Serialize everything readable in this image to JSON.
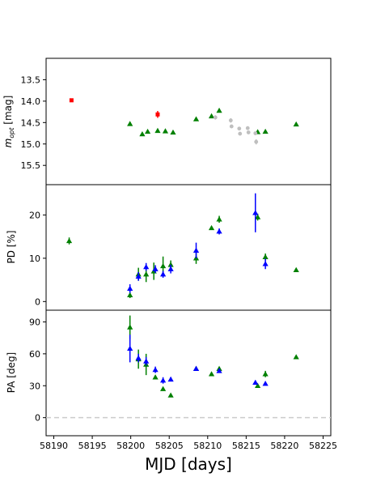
{
  "chart_data": {
    "type": "scatter",
    "xlabel": "MJD [days]",
    "xlim": [
      58189,
      58226
    ],
    "xticks": [
      "58190",
      "58195",
      "58200",
      "58205",
      "58210",
      "58215",
      "58220",
      "58225"
    ],
    "colors": {
      "red": "#ff0000",
      "green": "#008000",
      "blue": "#0000ff",
      "grey": "#bfbfbf"
    },
    "panels": [
      {
        "id": "mag",
        "ylabel_main": "m",
        "ylabel_sub": "opt",
        "ylabel_unit": " [mag]",
        "ylim": [
          15.95,
          13.0
        ],
        "inverted": true,
        "yticks": [
          "13.5",
          "14.0",
          "14.5",
          "15.0",
          "15.5"
        ],
        "series": [
          {
            "color": "red",
            "marker": "square",
            "points": [
              {
                "x": 58192.3,
                "y": 13.98,
                "err": 0.03
              },
              {
                "x": 58203.5,
                "y": 14.31,
                "err": 0.08
              }
            ]
          },
          {
            "color": "green",
            "marker": "triangle",
            "points": [
              {
                "x": 58199.9,
                "y": 14.53
              },
              {
                "x": 58201.5,
                "y": 14.77
              },
              {
                "x": 58202.2,
                "y": 14.71
              },
              {
                "x": 58203.5,
                "y": 14.69
              },
              {
                "x": 58204.5,
                "y": 14.7
              },
              {
                "x": 58205.5,
                "y": 14.73
              },
              {
                "x": 58208.5,
                "y": 14.42
              },
              {
                "x": 58210.5,
                "y": 14.35
              },
              {
                "x": 58211.5,
                "y": 14.22
              },
              {
                "x": 58216.5,
                "y": 14.72
              },
              {
                "x": 58217.5,
                "y": 14.71
              },
              {
                "x": 58221.5,
                "y": 14.54
              }
            ]
          },
          {
            "color": "grey",
            "marker": "circle",
            "points": [
              {
                "x": 58211.0,
                "y": 14.38,
                "err": 0.05
              },
              {
                "x": 58213.0,
                "y": 14.45,
                "err": 0.05
              },
              {
                "x": 58213.1,
                "y": 14.59,
                "err": 0.03
              },
              {
                "x": 58214.1,
                "y": 14.64,
                "err": 0.03
              },
              {
                "x": 58214.2,
                "y": 14.76,
                "err": 0.04
              },
              {
                "x": 58215.2,
                "y": 14.63,
                "err": 0.03
              },
              {
                "x": 58215.3,
                "y": 14.73,
                "err": 0.04
              },
              {
                "x": 58216.2,
                "y": 14.75,
                "err": 0.04
              },
              {
                "x": 58216.3,
                "y": 14.95,
                "err": 0.06
              }
            ]
          }
        ]
      },
      {
        "id": "pd",
        "ylabel": "PD [%]",
        "ylim": [
          -2,
          27
        ],
        "yticks": [
          "0",
          "10",
          "20"
        ],
        "series": [
          {
            "color": "green",
            "marker": "triangle",
            "points": [
              {
                "x": 58192.0,
                "y": 14.0,
                "err": 0.8
              },
              {
                "x": 58199.9,
                "y": 1.5,
                "err": 0.7
              },
              {
                "x": 58201.0,
                "y": 6.3,
                "err": 1.5
              },
              {
                "x": 58202.0,
                "y": 6.3,
                "err": 1.8
              },
              {
                "x": 58203.0,
                "y": 7.0,
                "err": 2.0
              },
              {
                "x": 58204.2,
                "y": 8.2,
                "err": 2.2
              },
              {
                "x": 58205.2,
                "y": 8.5,
                "err": 1.0
              },
              {
                "x": 58208.5,
                "y": 10.0,
                "err": 1.3
              },
              {
                "x": 58210.5,
                "y": 17.0,
                "err": 0.4
              },
              {
                "x": 58211.5,
                "y": 19.0,
                "err": 0.8
              },
              {
                "x": 58216.5,
                "y": 19.5,
                "err": 0.8
              },
              {
                "x": 58217.5,
                "y": 10.3,
                "err": 0.8
              },
              {
                "x": 58221.5,
                "y": 7.3,
                "err": 0.4
              }
            ]
          },
          {
            "color": "blue",
            "marker": "triangle",
            "points": [
              {
                "x": 58199.9,
                "y": 3.0,
                "err": 1.0
              },
              {
                "x": 58201.0,
                "y": 5.8,
                "err": 1.0
              },
              {
                "x": 58202.0,
                "y": 8.0,
                "err": 0.9
              },
              {
                "x": 58203.2,
                "y": 7.5,
                "err": 0.9
              },
              {
                "x": 58204.2,
                "y": 6.3,
                "err": 0.8
              },
              {
                "x": 58205.2,
                "y": 7.5,
                "err": 1.0
              },
              {
                "x": 58208.5,
                "y": 11.8,
                "err": 1.8
              },
              {
                "x": 58211.5,
                "y": 16.2,
                "err": 0.7
              },
              {
                "x": 58216.2,
                "y": 20.5,
                "err": 4.5
              },
              {
                "x": 58217.5,
                "y": 8.7,
                "err": 1.2
              }
            ]
          }
        ]
      },
      {
        "id": "pa",
        "ylabel": "PA [deg]",
        "ylim": [
          -17,
          101
        ],
        "yticks": [
          "0",
          "30",
          "60",
          "90"
        ],
        "reference_line": 0,
        "series": [
          {
            "color": "green",
            "marker": "triangle",
            "points": [
              {
                "x": 58199.9,
                "y": 85,
                "err": 11
              },
              {
                "x": 58201.0,
                "y": 55,
                "err": 9
              },
              {
                "x": 58202.0,
                "y": 50,
                "err": 10
              },
              {
                "x": 58203.2,
                "y": 38,
                "err": 1.5
              },
              {
                "x": 58204.2,
                "y": 27,
                "err": 1.5
              },
              {
                "x": 58205.2,
                "y": 21,
                "err": 1.0
              },
              {
                "x": 58208.5,
                "y": 46,
                "err": 1.5
              },
              {
                "x": 58210.5,
                "y": 41,
                "err": 1.0
              },
              {
                "x": 58211.5,
                "y": 46,
                "err": 1.5
              },
              {
                "x": 58216.5,
                "y": 30,
                "err": 1.5
              },
              {
                "x": 58217.5,
                "y": 41,
                "err": 3.0
              },
              {
                "x": 58221.5,
                "y": 57,
                "err": 1.0
              }
            ]
          },
          {
            "color": "blue",
            "marker": "triangle",
            "points": [
              {
                "x": 58199.9,
                "y": 65,
                "err": 13
              },
              {
                "x": 58201.0,
                "y": 56,
                "err": 4
              },
              {
                "x": 58202.0,
                "y": 53,
                "err": 4
              },
              {
                "x": 58203.2,
                "y": 45,
                "err": 3
              },
              {
                "x": 58204.2,
                "y": 35,
                "err": 3
              },
              {
                "x": 58205.2,
                "y": 36,
                "err": 2
              },
              {
                "x": 58208.5,
                "y": 46,
                "err": 2
              },
              {
                "x": 58211.5,
                "y": 44,
                "err": 2
              },
              {
                "x": 58216.2,
                "y": 33,
                "err": 2
              },
              {
                "x": 58217.5,
                "y": 32,
                "err": 1.5
              }
            ]
          }
        ]
      }
    ]
  }
}
